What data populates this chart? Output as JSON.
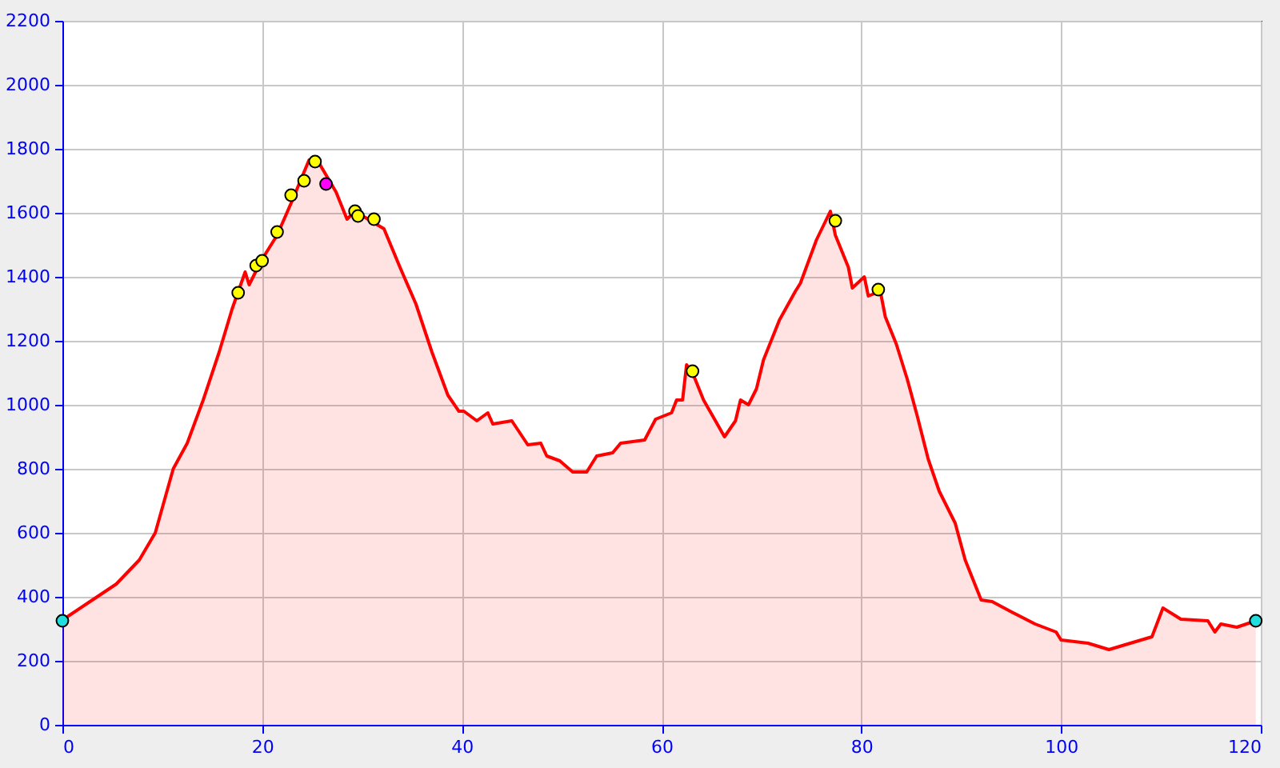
{
  "chart_data": {
    "type": "area",
    "xlim": [
      0,
      120
    ],
    "ylim": [
      0,
      2200
    ],
    "xticks": [
      0,
      20,
      40,
      60,
      80,
      100,
      120
    ],
    "yticks": [
      0,
      200,
      400,
      600,
      800,
      1000,
      1200,
      1400,
      1600,
      1800,
      2000,
      2200
    ],
    "grid": true,
    "series": [
      {
        "color": "#ff0000",
        "x": [
          0,
          0.6,
          3.0,
          5.4,
          7.7,
          9.3,
          11.1,
          12.5,
          14.1,
          15.7,
          17.0,
          18.3,
          18.7,
          19.9,
          21.5,
          22.9,
          24.7,
          25.8,
          27.4,
          28.5,
          29.3,
          30.6,
          32.2,
          33.8,
          35.4,
          37.0,
          38.6,
          39.7,
          40.2,
          41.5,
          42.6,
          43.1,
          45.0,
          46.6,
          47.9,
          48.5,
          49.8,
          51.1,
          52.5,
          53.5,
          55.1,
          55.9,
          58.3,
          59.4,
          61.0,
          61.5,
          62.1,
          62.5,
          63.1,
          64.2,
          65.3,
          66.3,
          67.4,
          67.9,
          68.7,
          69.5,
          70.2,
          71.8,
          73.4,
          73.9,
          75.5,
          76.9,
          77.4,
          78.7,
          79.1,
          80.3,
          80.7,
          81.9,
          82.4,
          83.5,
          84.6,
          85.6,
          86.7,
          87.8,
          89.4,
          90.4,
          92.0,
          93.1,
          95.2,
          97.4,
          99.5,
          100.0,
          102.7,
          104.8,
          106.4,
          109.1,
          110.2,
          112.0,
          114.7,
          115.4,
          116.0,
          117.6,
          119.5
        ],
        "values": [
          325,
          340,
          390,
          440,
          515,
          600,
          800,
          880,
          1015,
          1165,
          1300,
          1415,
          1375,
          1450,
          1530,
          1630,
          1765,
          1750,
          1665,
          1580,
          1605,
          1580,
          1550,
          1430,
          1315,
          1165,
          1030,
          980,
          980,
          950,
          975,
          940,
          950,
          875,
          880,
          840,
          825,
          790,
          790,
          840,
          850,
          880,
          890,
          955,
          975,
          1015,
          1015,
          1125,
          1100,
          1015,
          955,
          900,
          950,
          1015,
          1000,
          1050,
          1140,
          1265,
          1355,
          1380,
          1515,
          1605,
          1530,
          1430,
          1365,
          1400,
          1340,
          1355,
          1275,
          1190,
          1080,
          965,
          830,
          730,
          630,
          515,
          390,
          385,
          350,
          315,
          290,
          265,
          255,
          235,
          250,
          275,
          365,
          330,
          325,
          290,
          315,
          305,
          325
        ]
      },
      {
        "type": "scatter",
        "marker": "circle",
        "color": "#ffff00",
        "x": [
          17.6,
          19.4,
          20.0,
          21.5,
          22.9,
          24.2,
          25.3,
          29.3,
          29.6,
          31.2,
          63.1,
          77.4,
          81.7
        ],
        "values": [
          1350,
          1435,
          1450,
          1540,
          1655,
          1700,
          1760,
          1605,
          1590,
          1580,
          1105,
          1575,
          1360
        ]
      },
      {
        "type": "scatter",
        "marker": "circle",
        "color": "#ff00ff",
        "x": [
          26.4
        ],
        "values": [
          1690
        ]
      },
      {
        "type": "scatter",
        "marker": "circle",
        "color": "#22dddd",
        "x": [
          0,
          119.5
        ],
        "values": [
          325,
          325
        ]
      }
    ]
  }
}
